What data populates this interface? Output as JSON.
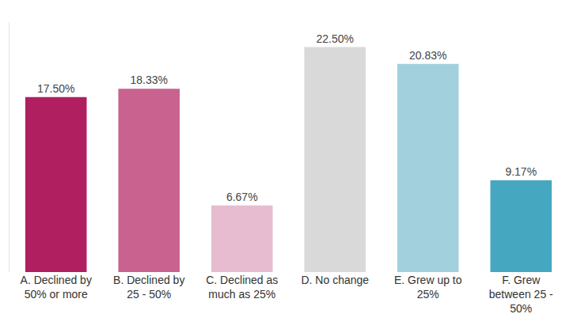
{
  "chart_data": {
    "type": "bar",
    "categories": [
      "A. Declined by 50% or more",
      "B. Declined by 25 - 50%",
      "C. Declined as much as 25%",
      "D. No change",
      "E. Grew up to 25%",
      "F. Grew between 25 - 50%"
    ],
    "values": [
      17.5,
      18.33,
      6.67,
      22.5,
      20.83,
      9.17
    ],
    "value_labels": [
      "17.50%",
      "18.33%",
      "6.67%",
      "22.50%",
      "20.83%",
      "9.17%"
    ],
    "colors": [
      "#b01f5f",
      "#c9628f",
      "#e7bcd0",
      "#d9d9d9",
      "#a2d1dd",
      "#45a8c0"
    ],
    "ylim": [
      0,
      25
    ],
    "yticks": [],
    "grid": false,
    "data_labels": true,
    "tick_labels": "x"
  }
}
